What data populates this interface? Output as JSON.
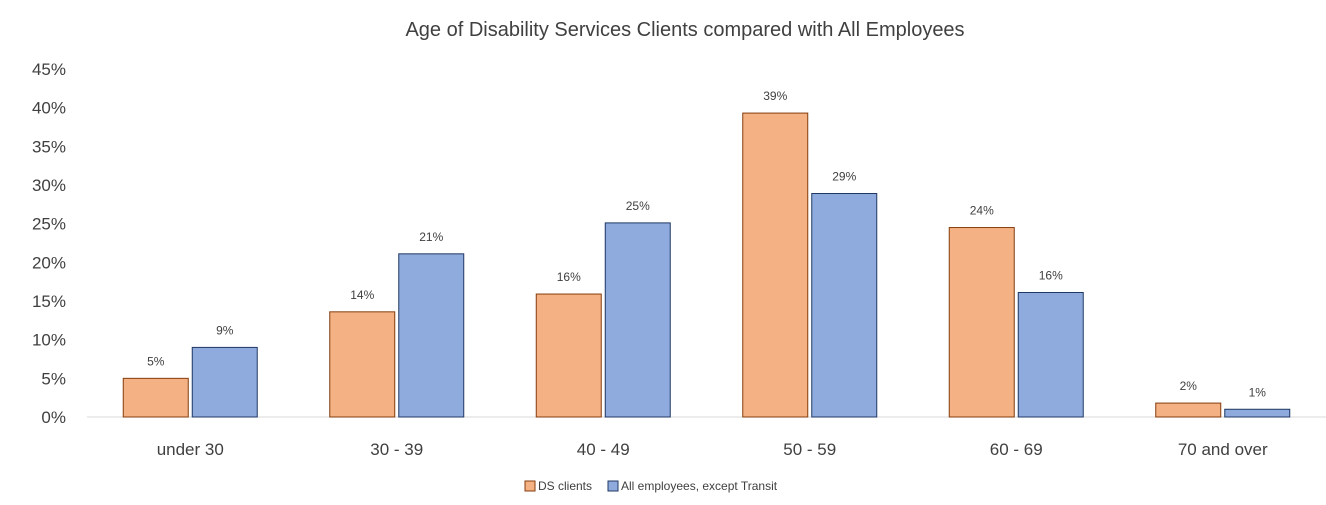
{
  "chart_data": {
    "type": "bar",
    "title": "Age of Disability Services Clients compared with All Employees",
    "xlabel": "",
    "ylabel": "",
    "categories": [
      "under 30",
      "30 - 39",
      "40 - 49",
      "50 - 59",
      "60 - 69",
      "70 and over"
    ],
    "series": [
      {
        "name": "DS clients",
        "values": [
          5,
          13.6,
          15.9,
          39.3,
          24.5,
          1.8
        ],
        "labels": [
          "5%",
          "14%",
          "16%",
          "39%",
          "24%",
          "2%"
        ],
        "color": "#F4B183",
        "stroke": "#843C0C"
      },
      {
        "name": "All employees, except Transit",
        "values": [
          9,
          21.1,
          25.1,
          28.9,
          16.1,
          1.0
        ],
        "labels": [
          "9%",
          "21%",
          "25%",
          "29%",
          "16%",
          "1%"
        ],
        "color": "#8FAADC",
        "stroke": "#1F3864"
      }
    ],
    "ylim": [
      0,
      45
    ],
    "yticks": [
      0,
      5,
      10,
      15,
      20,
      25,
      30,
      35,
      40,
      45
    ],
    "ytick_labels": [
      "0%",
      "5%",
      "10%",
      "15%",
      "20%",
      "25%",
      "30%",
      "35%",
      "40%",
      "45%"
    ],
    "grid": false,
    "legend_position": "bottom"
  }
}
